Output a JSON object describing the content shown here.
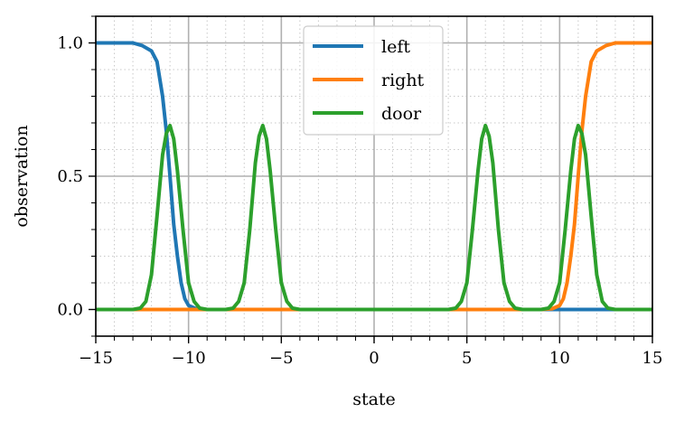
{
  "chart_data": {
    "type": "line",
    "xlabel": "state",
    "ylabel": "observation",
    "xlim": [
      -15,
      15
    ],
    "ylim": [
      -0.1,
      1.1
    ],
    "xticks": [
      -15,
      -10,
      -5,
      0,
      5,
      10,
      15
    ],
    "xtick_labels": [
      "−15",
      "−10",
      "−5",
      "0",
      "5",
      "10",
      "15"
    ],
    "yticks": [
      0.0,
      0.5,
      1.0
    ],
    "ytick_labels": [
      "0.0",
      "0.5",
      "1.0"
    ],
    "grid": {
      "major": true,
      "minor": true
    },
    "legend": {
      "placement": "top-center"
    },
    "series": [
      {
        "name": "left",
        "color": "#1f77b4",
        "x": [
          -15,
          -13,
          -12.5,
          -12,
          -11.7,
          -11.4,
          -11.2,
          -11,
          -10.8,
          -10.6,
          -10.4,
          -10.2,
          -10,
          -9.6,
          -9,
          -5,
          0,
          5,
          9,
          10,
          15
        ],
        "y": [
          1.0,
          1.0,
          0.99,
          0.97,
          0.93,
          0.8,
          0.67,
          0.5,
          0.32,
          0.2,
          0.1,
          0.04,
          0.015,
          0.003,
          0.0,
          0.0,
          0.0,
          0.0,
          0.0,
          0.0,
          0.0
        ]
      },
      {
        "name": "right",
        "color": "#ff7f0e",
        "x": [
          -15,
          -10,
          -5,
          0,
          5,
          9,
          9.6,
          10,
          10.2,
          10.4,
          10.6,
          10.8,
          11,
          11.2,
          11.4,
          11.7,
          12,
          12.5,
          13,
          15
        ],
        "y": [
          0.0,
          0.0,
          0.0,
          0.0,
          0.0,
          0.0,
          0.003,
          0.015,
          0.04,
          0.1,
          0.2,
          0.32,
          0.5,
          0.67,
          0.8,
          0.93,
          0.97,
          0.99,
          1.0,
          1.0
        ]
      },
      {
        "name": "door",
        "color": "#2ca02c",
        "x": [
          -15,
          -13,
          -12.6,
          -12.3,
          -12.0,
          -11.7,
          -11.4,
          -11.2,
          -11.0,
          -10.8,
          -10.6,
          -10.3,
          -10.0,
          -9.7,
          -9.4,
          -9.0,
          -8.0,
          -7.6,
          -7.3,
          -7.0,
          -6.7,
          -6.4,
          -6.2,
          -6.0,
          -5.8,
          -5.6,
          -5.3,
          -5.0,
          -4.7,
          -4.4,
          -4.0,
          0,
          4.0,
          4.4,
          4.7,
          5.0,
          5.3,
          5.6,
          5.8,
          6.0,
          6.2,
          6.4,
          6.7,
          7.0,
          7.3,
          7.6,
          8.0,
          9.0,
          9.4,
          9.7,
          10.0,
          10.3,
          10.6,
          10.8,
          11.0,
          11.2,
          11.4,
          11.7,
          12.0,
          12.3,
          12.6,
          13,
          15
        ],
        "y": [
          0.0,
          0.0,
          0.005,
          0.03,
          0.13,
          0.35,
          0.58,
          0.66,
          0.69,
          0.64,
          0.52,
          0.3,
          0.1,
          0.03,
          0.005,
          0.0,
          0.0,
          0.005,
          0.03,
          0.1,
          0.3,
          0.55,
          0.65,
          0.69,
          0.64,
          0.52,
          0.3,
          0.1,
          0.03,
          0.005,
          0.0,
          0.0,
          0.0,
          0.005,
          0.03,
          0.1,
          0.3,
          0.52,
          0.64,
          0.69,
          0.65,
          0.55,
          0.3,
          0.1,
          0.03,
          0.005,
          0.0,
          0.0,
          0.005,
          0.03,
          0.1,
          0.3,
          0.52,
          0.64,
          0.69,
          0.66,
          0.58,
          0.35,
          0.13,
          0.03,
          0.005,
          0.0,
          0.0
        ]
      }
    ]
  }
}
